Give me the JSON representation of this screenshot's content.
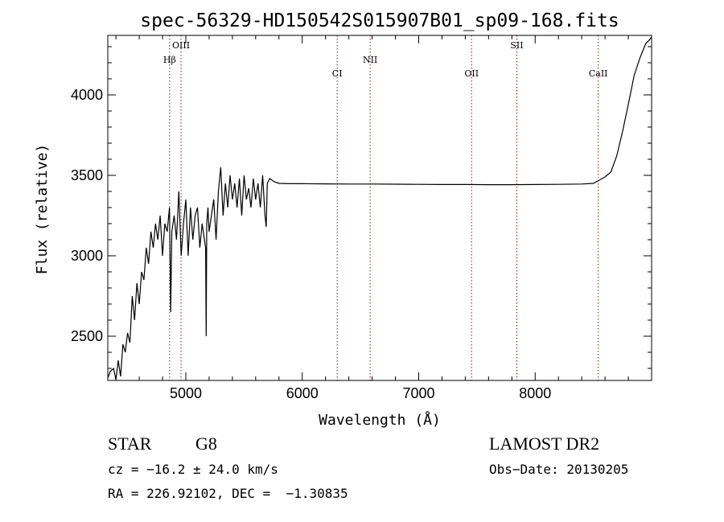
{
  "chart_data": {
    "type": "line",
    "title": "spec-56329-HD150542S015907B01_sp09-168.fits",
    "xlabel": "Wavelength (Å)",
    "ylabel": "Flux (relative)",
    "xlim": [
      4330,
      9000
    ],
    "ylim": [
      2225,
      4370
    ],
    "x_ticks": [
      5000,
      6000,
      7000,
      8000
    ],
    "y_ticks": [
      2500,
      3000,
      3500,
      4000
    ],
    "grid": false,
    "spectral_lines": [
      {
        "label": "Hβ",
        "x": 4861,
        "row": 2
      },
      {
        "label": "OIII",
        "x": 4959,
        "row": 1
      },
      {
        "label": "CI",
        "x": 6300,
        "row": 3
      },
      {
        "label": "NII",
        "x": 6583,
        "row": 2
      },
      {
        "label": "OII",
        "x": 7454,
        "row": 3
      },
      {
        "label": "SII",
        "x": 7843,
        "row": 1
      },
      {
        "label": "CaII",
        "x": 8542,
        "row": 3
      }
    ],
    "series": [
      {
        "color": "#000000",
        "x": [
          4330,
          4350,
          4380,
          4400,
          4420,
          4440,
          4460,
          4480,
          4500,
          4520,
          4540,
          4560,
          4580,
          4600,
          4620,
          4640,
          4660,
          4680,
          4700,
          4720,
          4740,
          4760,
          4780,
          4800,
          4820,
          4840,
          4860,
          4870,
          4880,
          4900,
          4920,
          4940,
          4960,
          4980,
          5000,
          5020,
          5040,
          5060,
          5080,
          5100,
          5120,
          5140,
          5160,
          5170,
          5175,
          5180,
          5190,
          5200,
          5220,
          5240,
          5260,
          5280,
          5300,
          5320,
          5340,
          5360,
          5380,
          5400,
          5420,
          5440,
          5460,
          5480,
          5500,
          5520,
          5540,
          5560,
          5580,
          5600,
          5620,
          5640,
          5660,
          5680,
          5690,
          5700,
          5720,
          5740,
          5760,
          5780,
          5800,
          5900,
          6000,
          6200,
          6400,
          6600,
          6800,
          7000,
          7200,
          7400,
          7600,
          7800,
          8000,
          8200,
          8400,
          8500,
          8550,
          8600,
          8650,
          8700,
          8750,
          8800,
          8850,
          8900,
          8950,
          8980,
          9000
        ],
        "y": [
          2240,
          2280,
          2300,
          2230,
          2350,
          2250,
          2450,
          2400,
          2520,
          2460,
          2750,
          2600,
          2830,
          2700,
          2900,
          2850,
          3050,
          2950,
          3150,
          3050,
          3200,
          3100,
          3250,
          3000,
          3200,
          3150,
          3300,
          2650,
          3150,
          3250,
          3100,
          3400,
          3000,
          3200,
          3350,
          3000,
          3300,
          3100,
          3250,
          3300,
          3050,
          3200,
          3100,
          3050,
          2500,
          3200,
          3300,
          3150,
          3250,
          3350,
          3100,
          3400,
          3550,
          3250,
          3450,
          3300,
          3500,
          3350,
          3450,
          3300,
          3480,
          3250,
          3500,
          3350,
          3420,
          3300,
          3480,
          3350,
          3450,
          3300,
          3500,
          3250,
          3180,
          3450,
          3480,
          3470,
          3460,
          3455,
          3450,
          3448,
          3448,
          3447,
          3446,
          3446,
          3445,
          3444,
          3443,
          3443,
          3442,
          3442,
          3443,
          3444,
          3446,
          3450,
          3470,
          3490,
          3520,
          3620,
          3770,
          3940,
          4120,
          4230,
          4320,
          4340,
          4360
        ]
      }
    ]
  },
  "info": {
    "object_class": "STAR",
    "subclass": "G8",
    "survey": "LAMOST DR2",
    "cz": "cz = −16.2 ± 24.0 km/s",
    "obs_date": "Obs−Date: 20130205",
    "coords": "RA = 226.92102, DEC =  −1.30835"
  }
}
